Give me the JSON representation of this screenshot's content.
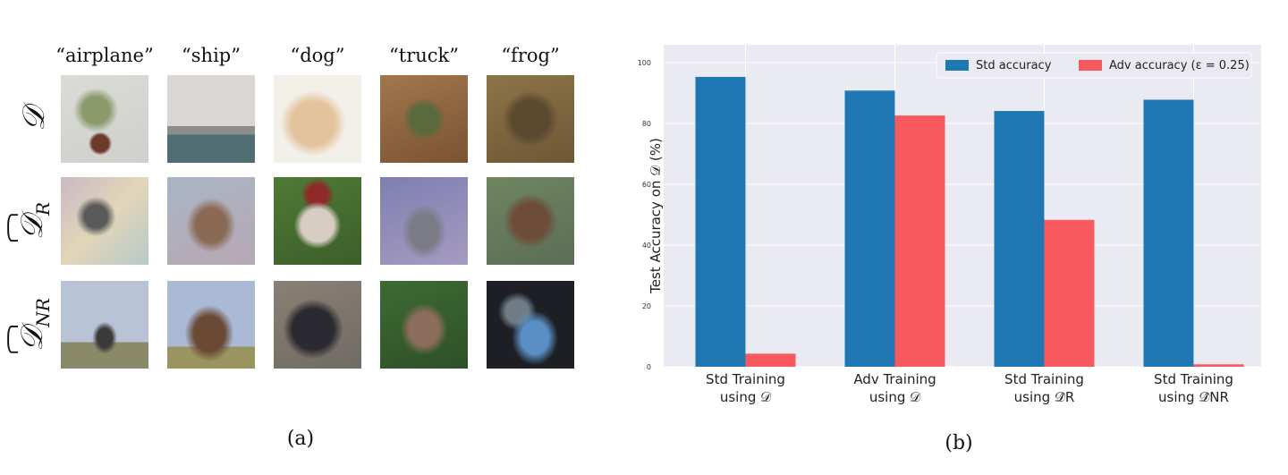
{
  "panel_a": {
    "class_labels": [
      "“airplane”",
      "“ship”",
      "“dog”",
      "“truck”",
      "“frog”"
    ],
    "row_labels": [
      {
        "main": "𝒟",
        "sub": "",
        "hat": false
      },
      {
        "main": "𝒟",
        "sub": "R",
        "hat": true
      },
      {
        "main": "𝒟",
        "sub": "NR",
        "hat": true
      }
    ],
    "caption": "(a)"
  },
  "panel_b": {
    "caption": "(b)"
  },
  "chart_data": {
    "type": "bar",
    "ylabel": "Test Accuracy on 𝒟 (%)",
    "ylim": [
      0,
      100
    ],
    "yticks": [
      "0",
      "20",
      "40",
      "60",
      "80",
      "100"
    ],
    "categories": [
      [
        "Std Training",
        "using 𝒟"
      ],
      [
        "Adv Training",
        "using 𝒟"
      ],
      [
        "Std Training",
        "using 𝒟̂R"
      ],
      [
        "Std Training",
        "using 𝒟̂NR"
      ]
    ],
    "series": [
      {
        "name": "Std accuracy",
        "color": "#1f77b4",
        "values": [
          95.3,
          90.8,
          84.1,
          87.8
        ]
      },
      {
        "name": "Adv accuracy (ε = 0.25)",
        "color": "#f8595f",
        "values": [
          4.3,
          82.6,
          48.3,
          0.8
        ]
      }
    ],
    "grid": true,
    "legend": "top-right"
  }
}
